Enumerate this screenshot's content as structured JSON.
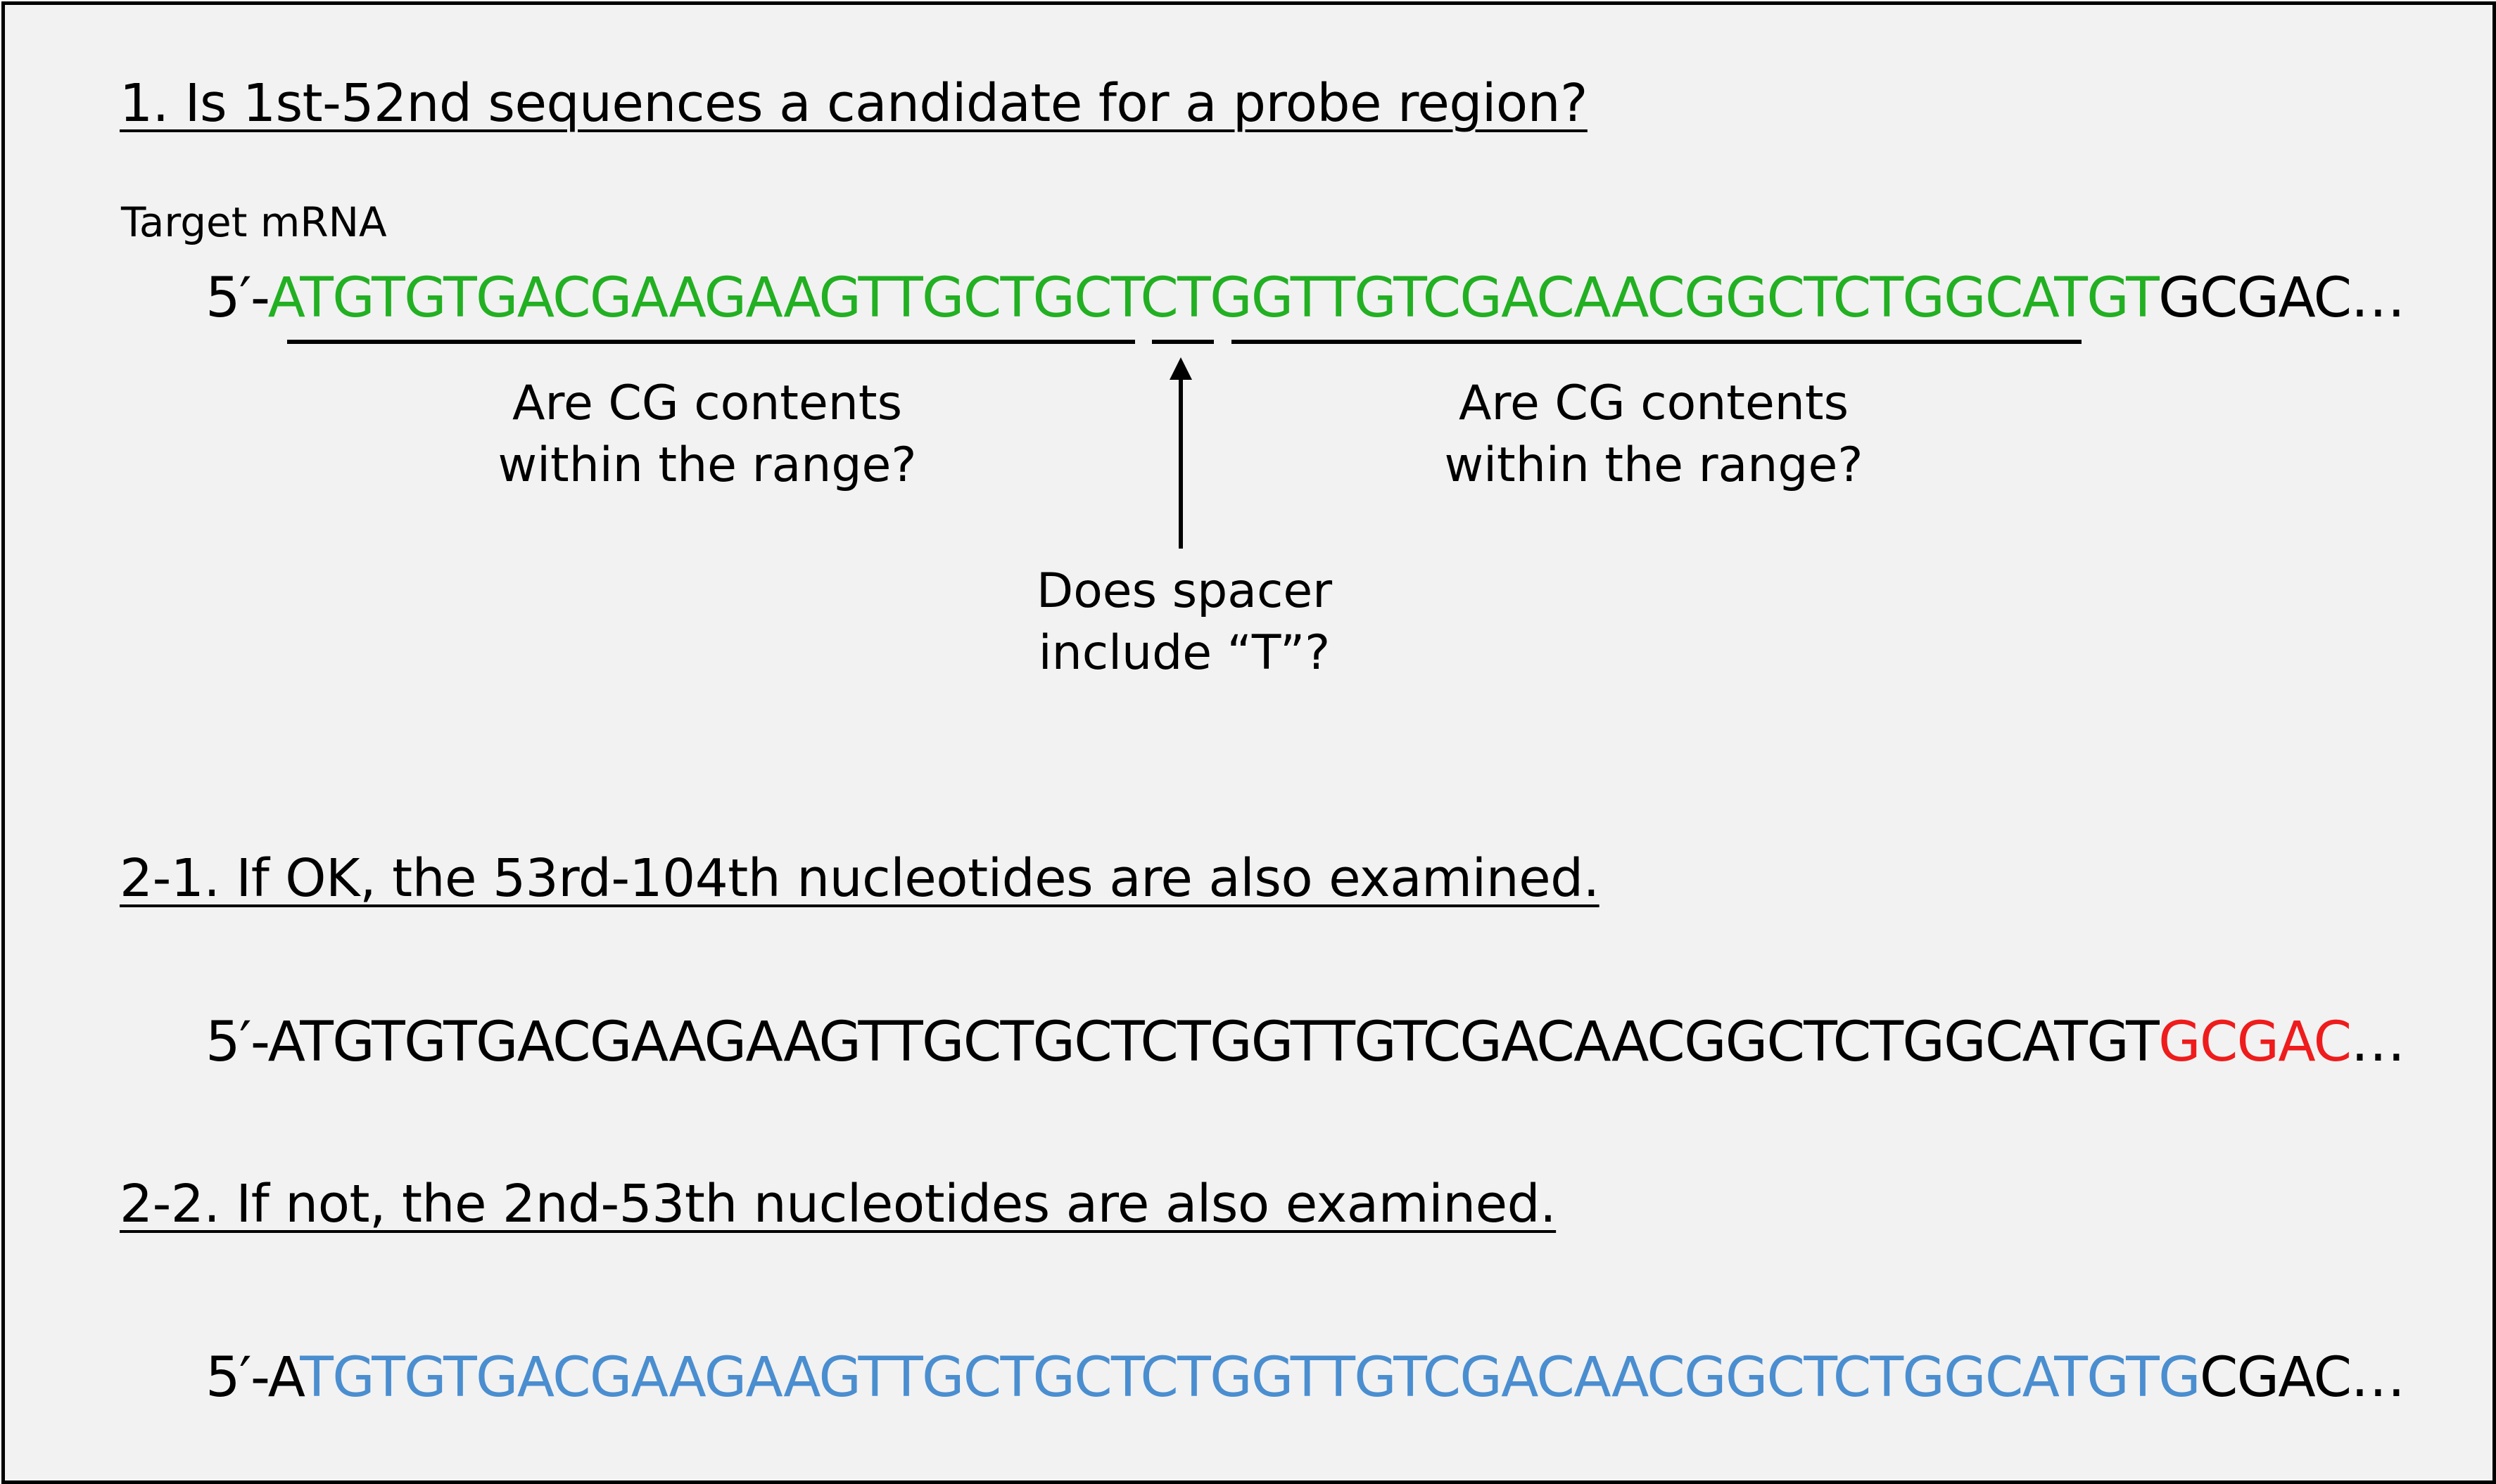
{
  "colors": {
    "frame_border": "#000000",
    "background": "#f2f2f2",
    "green": "#22b022",
    "red": "#ee1c1c",
    "blue": "#4a8ed0",
    "black": "#000000"
  },
  "step1": {
    "heading": "1. Is 1st-52nd sequences a candidate for a probe region?",
    "target_label": "Target mRNA",
    "sequence": {
      "prefix": "5′-",
      "green": "ATGTGTGACGAAGAAGTTGCTGCTCTGGTTGTCGACAACGGCTCTGGCATGT",
      "black": "GCGAC…"
    },
    "left_note_1": "Are CG contents",
    "left_note_2": "within the range?",
    "right_note_1": "Are CG contents",
    "right_note_2": "within the range?",
    "spacer_note_1": "Does spacer",
    "spacer_note_2": "include “T”?"
  },
  "step2_1": {
    "heading": "2-1. If OK, the 53rd-104th nucleotides are also examined.",
    "sequence": {
      "prefix": "5′-",
      "black": "ATGTGTGACGAAGAAGTTGCTGCTCTGGTTGTCGACAACGGCTCTGGCATGT",
      "red": "GCGAC",
      "suffix": "…"
    }
  },
  "step2_2": {
    "heading": "2-2. If not, the 2nd-53th nucleotides are also examined.",
    "sequence": {
      "prefix": "5′-A",
      "blue": "TGTGTGACGAAGAAGTTGCTGCTCTGGTTGTCGACAACGGCTCTGGCATGTG",
      "black": "CGAC…"
    }
  }
}
